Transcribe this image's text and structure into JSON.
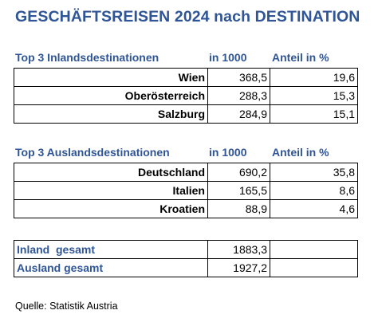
{
  "title": "GESCHÄFTSREISEN 2024 nach DESTINATION",
  "inland": {
    "heading": "Top 3 Inlandsdestinationen",
    "col_value": "in 1000",
    "col_share": "Anteil in %",
    "rows": [
      {
        "name": "Wien",
        "value": "368,5",
        "share": "19,6"
      },
      {
        "name": "Oberösterreich",
        "value": "288,3",
        "share": "15,3"
      },
      {
        "name": "Salzburg",
        "value": "284,9",
        "share": "15,1"
      }
    ]
  },
  "ausland": {
    "heading": "Top 3 Auslandsdestinationen",
    "col_value": "in 1000",
    "col_share": "Anteil in %",
    "rows": [
      {
        "name": "Deutschland",
        "value": "690,2",
        "share": "35,8"
      },
      {
        "name": "Italien",
        "value": "165,5",
        "share": "8,6"
      },
      {
        "name": "Kroatien",
        "value": "88,9",
        "share": "4,6"
      }
    ]
  },
  "totals": {
    "rows": [
      {
        "name": "Inland  gesamt",
        "value": "1883,3",
        "share": ""
      },
      {
        "name": "Ausland gesamt",
        "value": "1927,2",
        "share": ""
      }
    ]
  },
  "source": "Quelle: Statistik Austria"
}
